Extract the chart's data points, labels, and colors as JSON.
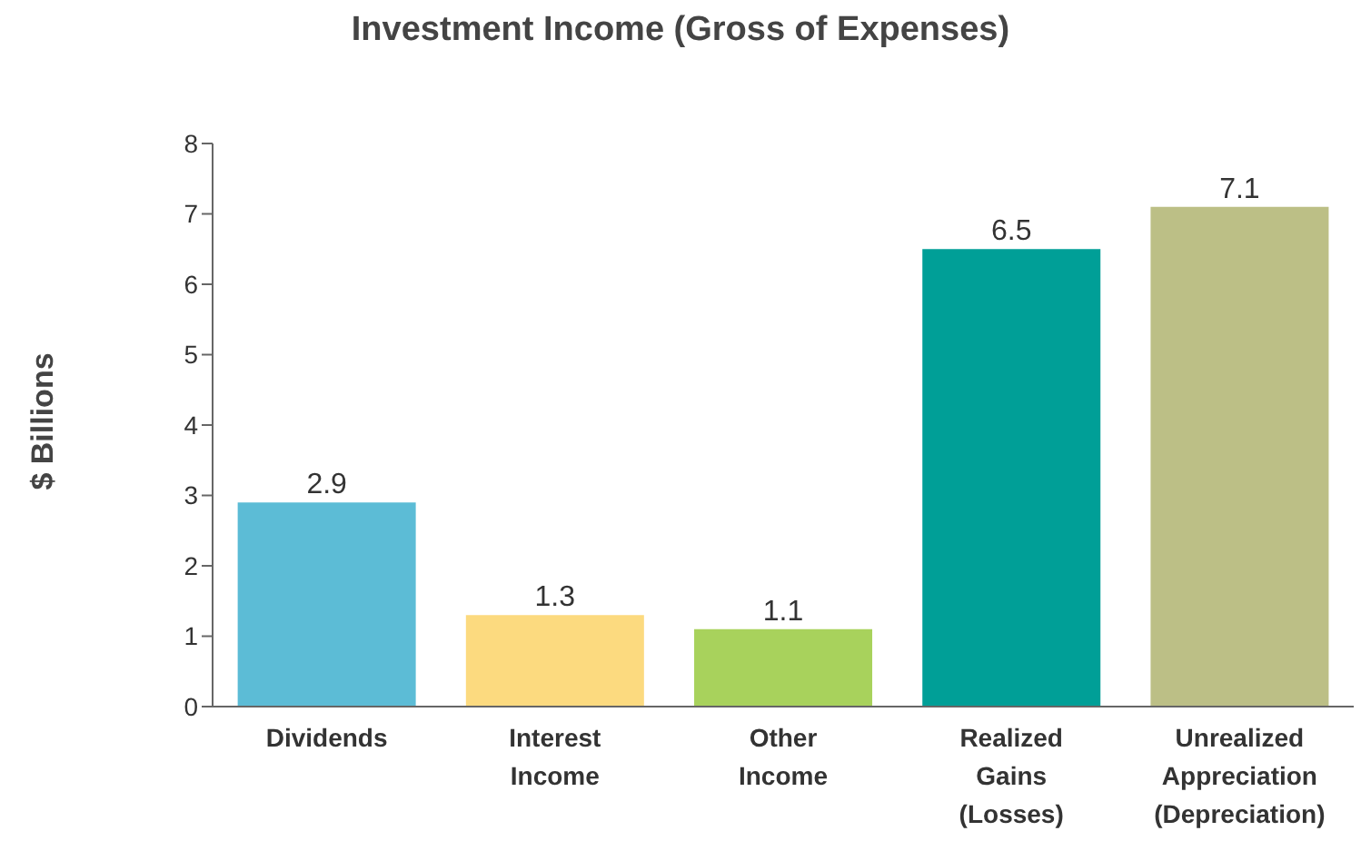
{
  "chart_data": {
    "type": "bar",
    "title": "Investment Income (Gross of Expenses)",
    "ylabel": "$ Billions",
    "categories": [
      "Dividends",
      "Interest Income",
      "Other Income",
      "Realized Gains (Losses)",
      "Unrealized Appreciation (Depreciation)"
    ],
    "values": [
      2.9,
      1.3,
      1.1,
      6.5,
      7.1
    ],
    "colors": [
      "#5cbcd6",
      "#fcda7f",
      "#a8d25c",
      "#009f97",
      "#bcbf86"
    ],
    "ylim": [
      0,
      8
    ],
    "yticks": [
      0,
      1,
      2,
      3,
      4,
      5,
      6,
      7,
      8
    ],
    "grid": false,
    "data_labels": true
  }
}
